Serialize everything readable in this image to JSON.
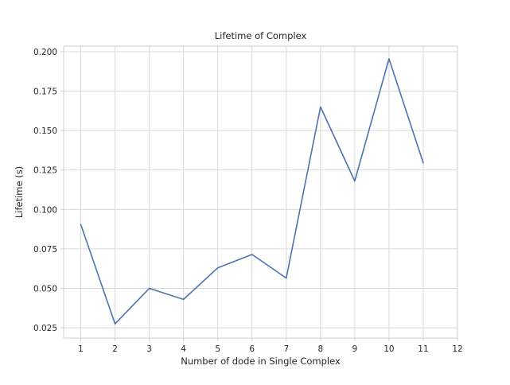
{
  "chart_data": {
    "type": "line",
    "title": "Lifetime of Complex",
    "xlabel": "Number of dode in Single Complex",
    "ylabel": "Lifetime (s)",
    "xlim": [
      0.5,
      12
    ],
    "ylim": [
      0.0185,
      0.2035
    ],
    "x_ticks": [
      1,
      2,
      3,
      4,
      5,
      6,
      7,
      8,
      9,
      10,
      11,
      12
    ],
    "y_ticks": [
      0.025,
      0.05,
      0.075,
      0.1,
      0.125,
      0.15,
      0.175,
      0.2
    ],
    "y_tick_labels": [
      "0.025",
      "0.050",
      "0.075",
      "0.100",
      "0.125",
      "0.150",
      "0.175",
      "0.200"
    ],
    "grid": true,
    "legend": "none",
    "series": [
      {
        "color": "#4c72b0",
        "x": [
          1,
          2,
          3,
          4,
          5,
          6,
          7,
          8,
          9,
          10,
          11
        ],
        "values": [
          0.0905,
          0.0275,
          0.05,
          0.043,
          0.063,
          0.0715,
          0.0565,
          0.165,
          0.118,
          0.1955,
          0.1295
        ]
      }
    ]
  }
}
